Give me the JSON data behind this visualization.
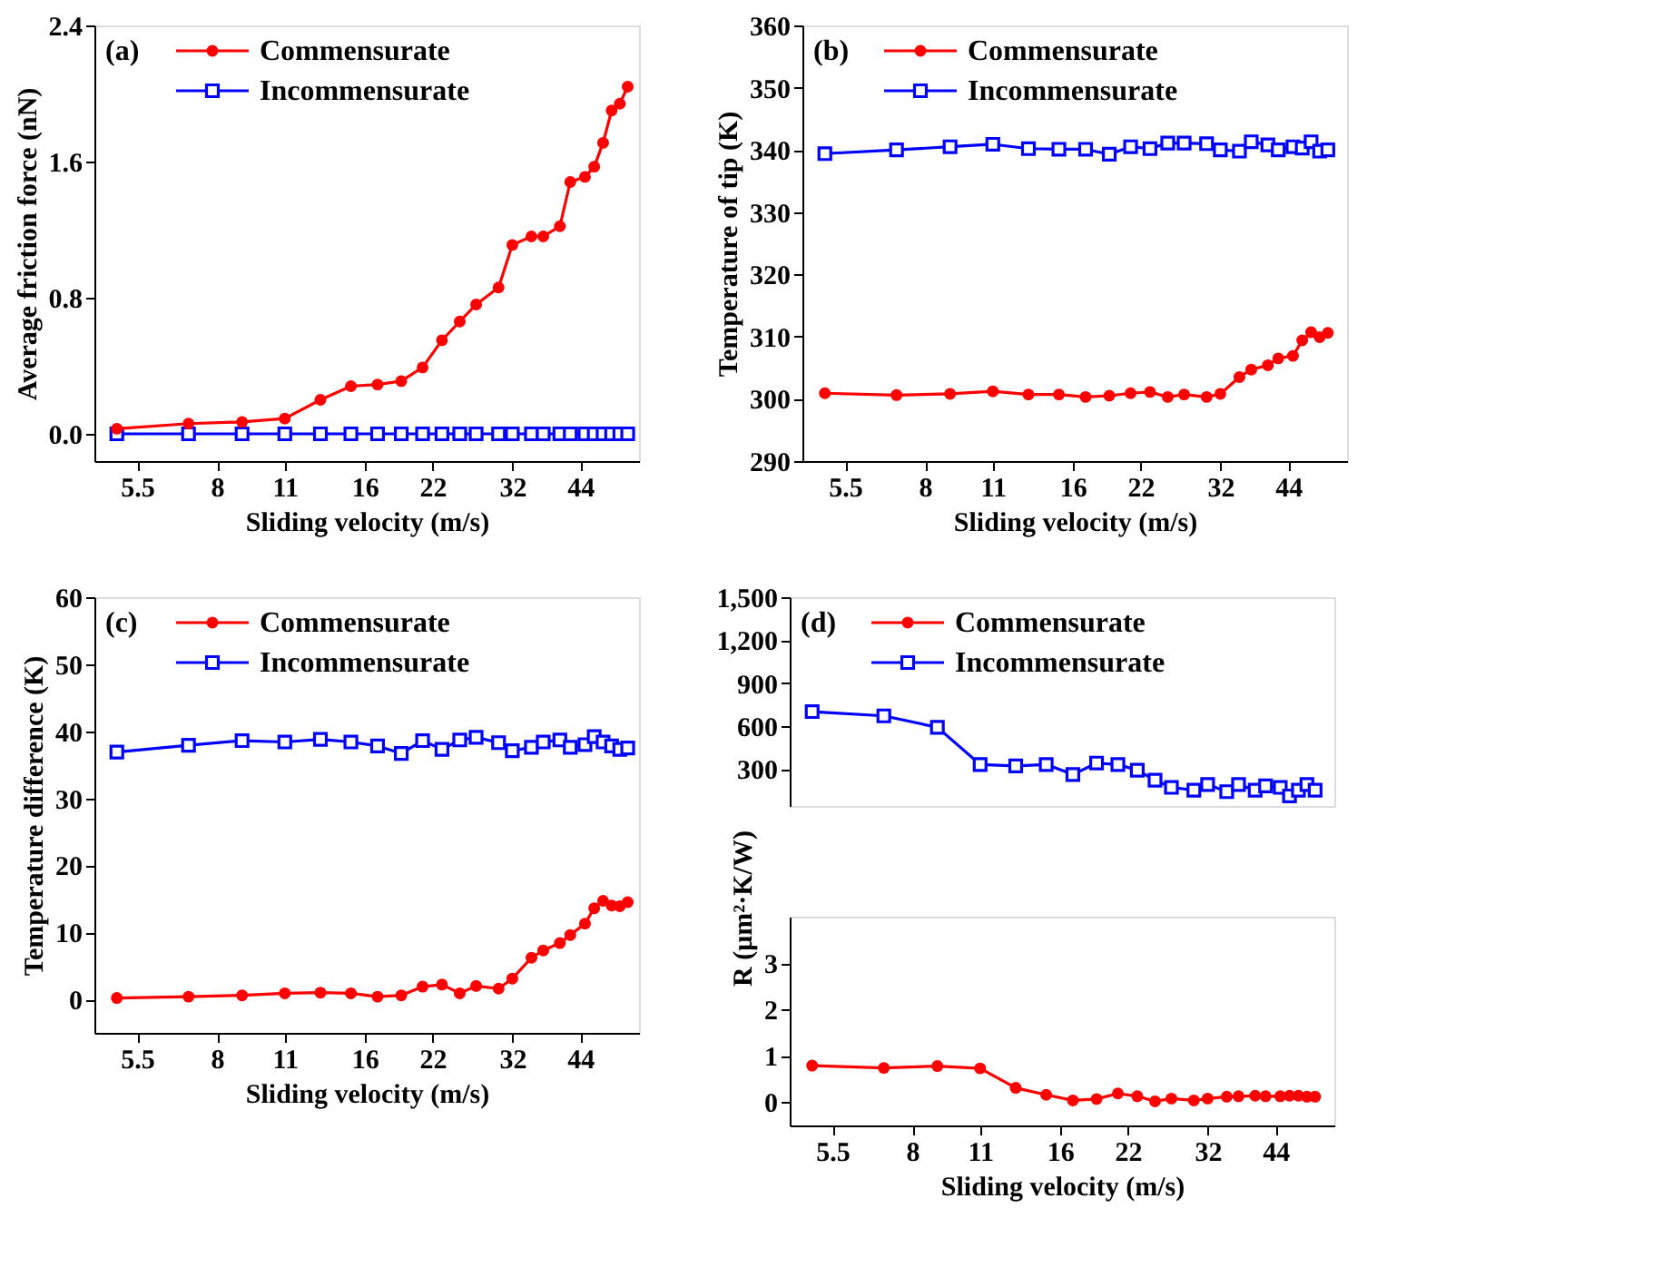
{
  "chart_data": [
    {
      "type": "line",
      "xlabel": "Sliding velocity (m/s)",
      "ylabel": "Average friction force (nN)",
      "annotations": [
        "(a)"
      ],
      "log": "x",
      "legend": "top left",
      "x": [
        5,
        7,
        9,
        11,
        13,
        15,
        17,
        19,
        21,
        23,
        25,
        27,
        30,
        32,
        35,
        37,
        40,
        42,
        45,
        47,
        49,
        51,
        53,
        55
      ],
      "xlim": [
        4.5,
        58
      ],
      "xticks": [
        5.5,
        8,
        11,
        16,
        22,
        32,
        44
      ],
      "ylim": [
        -0.16,
        2.4
      ],
      "yticks": [
        {
          "value": 0,
          "label": "0.0"
        },
        0.8,
        1.6,
        2.4
      ],
      "series": [
        {
          "name": "Commensurate",
          "color": "#ff0000",
          "marker": "circle",
          "values": [
            0.03,
            0.06,
            0.07,
            0.09,
            0.2,
            0.28,
            0.29,
            0.31,
            0.39,
            0.55,
            0.66,
            0.76,
            0.86,
            1.11,
            1.16,
            1.16,
            1.22,
            1.48,
            1.51,
            1.57,
            1.71,
            1.9,
            1.94,
            2.04
          ]
        },
        {
          "name": "Incommensurate",
          "color": "#0000ff",
          "marker": "square",
          "values": [
            0,
            0,
            0,
            0,
            0,
            0,
            0,
            0,
            0,
            0,
            0,
            0,
            0,
            0,
            0,
            0,
            0,
            0,
            0,
            0,
            0,
            0,
            0,
            0
          ]
        }
      ]
    },
    {
      "type": "line",
      "xlabel": "Sliding velocity (m/s)",
      "ylabel": "Temperature of tip (K)",
      "annotations": [
        "(b)"
      ],
      "log": "x",
      "legend": "top left",
      "x": [
        5,
        7,
        9,
        11,
        13,
        15,
        17,
        19,
        21,
        23,
        25,
        27,
        30,
        32,
        35,
        37,
        40,
        42,
        45,
        47,
        49,
        51,
        53
      ],
      "xlim": [
        4.5,
        58
      ],
      "xticks": [
        5.5,
        8,
        11,
        16,
        22,
        32,
        44
      ],
      "ylim": [
        290,
        360
      ],
      "yticks": [
        290,
        300,
        310,
        320,
        330,
        340,
        350,
        360
      ],
      "series": [
        {
          "name": "Commensurate",
          "color": "#ff0000",
          "marker": "circle",
          "values": [
            300.9,
            300.6,
            300.8,
            301.2,
            300.7,
            300.7,
            300.3,
            300.5,
            300.9,
            301.1,
            300.3,
            300.7,
            300.3,
            300.8,
            303.5,
            304.7,
            305.4,
            306.5,
            306.9,
            309.4,
            310.7,
            309.9,
            310.6
          ]
        },
        {
          "name": "Incommensurate",
          "color": "#0000ff",
          "marker": "square",
          "values": [
            339.4,
            340.0,
            340.5,
            340.9,
            340.2,
            340.1,
            340.1,
            339.3,
            340.5,
            340.2,
            341.1,
            341.1,
            341.0,
            340.0,
            339.8,
            341.3,
            340.8,
            340.0,
            340.5,
            340.3,
            341.3,
            339.8,
            340.0
          ]
        }
      ]
    },
    {
      "type": "line",
      "xlabel": "Sliding velocity (m/s)",
      "ylabel": "Temperature difference (K)",
      "annotations": [
        "(c)"
      ],
      "log": "x",
      "legend": "top left",
      "x": [
        5,
        7,
        9,
        11,
        13,
        15,
        17,
        19,
        21,
        23,
        25,
        27,
        30,
        32,
        35,
        37,
        40,
        42,
        45,
        47,
        49,
        51,
        53,
        55
      ],
      "xlim": [
        4.5,
        58
      ],
      "xticks": [
        5.5,
        8,
        11,
        16,
        22,
        32,
        44
      ],
      "ylim": [
        -5,
        60
      ],
      "yticks": [
        0,
        10,
        20,
        30,
        40,
        50,
        60
      ],
      "series": [
        {
          "name": "Commensurate",
          "color": "#ff0000",
          "marker": "circle",
          "values": [
            0.2,
            0.4,
            0.6,
            0.9,
            1.0,
            0.9,
            0.4,
            0.6,
            1.9,
            2.2,
            0.9,
            2.0,
            1.6,
            3.1,
            6.2,
            7.3,
            8.4,
            9.6,
            11.3,
            13.6,
            14.7,
            14.0,
            13.9,
            14.5
          ]
        },
        {
          "name": "Incommensurate",
          "color": "#0000ff",
          "marker": "square",
          "values": [
            36.9,
            37.9,
            38.6,
            38.4,
            38.8,
            38.4,
            37.8,
            36.7,
            38.6,
            37.3,
            38.7,
            39.1,
            38.3,
            37.1,
            37.6,
            38.4,
            38.7,
            37.6,
            38.0,
            39.2,
            38.4,
            37.8,
            37.3,
            37.5
          ]
        }
      ]
    },
    {
      "type": "line",
      "annotations": [
        "(d)"
      ],
      "log": "x",
      "legend": "top left",
      "tick_labels": "y",
      "x": [
        5,
        7,
        9,
        11,
        13,
        15,
        17,
        19,
        21,
        23,
        25,
        27,
        30,
        32,
        35,
        37,
        40,
        42,
        45,
        47,
        49,
        51,
        53
      ],
      "xlim": [
        4.5,
        58
      ],
      "xticks": [
        5.5,
        8,
        11,
        16,
        22,
        32,
        44
      ],
      "ylim": [
        40,
        1500
      ],
      "yticks": [
        300,
        600,
        900,
        {
          "value": 1200,
          "label": "1,200"
        },
        {
          "value": 1500,
          "label": "1,500"
        }
      ],
      "series": [
        {
          "name": "Incommensurate",
          "color": "#0000ff",
          "marker": "square",
          "values": [
            700,
            670,
            590,
            330,
            320,
            330,
            260,
            340,
            330,
            290,
            220,
            170,
            150,
            190,
            140,
            190,
            150,
            180,
            170,
            110,
            150,
            190,
            150
          ]
        }
      ]
    },
    {
      "type": "line",
      "xlabel": "Sliding velocity (m/s)",
      "ylabel": "R (μm²·K/W)",
      "log": "x",
      "x": [
        5,
        7,
        9,
        11,
        13,
        15,
        17,
        19,
        21,
        23,
        25,
        27,
        30,
        32,
        35,
        37,
        40,
        42,
        45,
        47,
        49,
        51,
        53
      ],
      "xlim": [
        4.5,
        58
      ],
      "xticks": [
        5.5,
        8,
        11,
        16,
        22,
        32,
        44
      ],
      "ylim": [
        -0.5,
        4
      ],
      "yticks": [
        0,
        1,
        2,
        3
      ],
      "series": [
        {
          "name": "Commensurate",
          "color": "#ff0000",
          "marker": "circle",
          "values": [
            0.79,
            0.74,
            0.78,
            0.73,
            0.31,
            0.16,
            0.04,
            0.07,
            0.19,
            0.13,
            0.02,
            0.08,
            0.04,
            0.08,
            0.12,
            0.13,
            0.14,
            0.13,
            0.13,
            0.14,
            0.14,
            0.12,
            0.12
          ]
        }
      ]
    }
  ]
}
